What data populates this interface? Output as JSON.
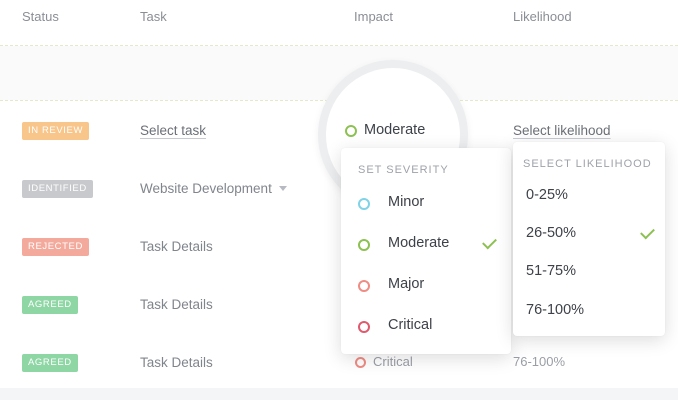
{
  "columns": {
    "status": "Status",
    "task": "Task",
    "impact": "Impact",
    "likelihood": "Likelihood"
  },
  "rows": [
    {
      "status": "IN REVIEW",
      "status_color": "#f8c58a",
      "task": "Select task",
      "impact": "Moderate",
      "likelihood": "Select likelihood"
    },
    {
      "status": "IDENTIFIED",
      "status_color": "#c7c9cc",
      "task": "Website Development"
    },
    {
      "status": "REJECTED",
      "status_color": "#f3aa9c",
      "task": "Task Details"
    },
    {
      "status": "AGREED",
      "status_color": "#8fd6a5",
      "task": "Task Details"
    },
    {
      "status": "AGREED",
      "status_color": "#8fd6a5",
      "task": "Task Details",
      "impact": "Critical",
      "likelihood": "76-100%"
    }
  ],
  "severity_dropdown": {
    "title": "SET SEVERITY",
    "selected": "Moderate",
    "options": [
      {
        "label": "Minor",
        "color": "#7fd3e8"
      },
      {
        "label": "Moderate",
        "color": "#8cc152"
      },
      {
        "label": "Major",
        "color": "#f08c84"
      },
      {
        "label": "Critical",
        "color": "#e05a6e"
      }
    ]
  },
  "likelihood_dropdown": {
    "title": "SELECT LIKELIHOOD",
    "selected": "26-50%",
    "options": [
      "0-25%",
      "26-50%",
      "51-75%",
      "76-100%"
    ]
  },
  "colors": {
    "check": "#8cc152",
    "moderate_ring": "#8cc152",
    "critical_ring": "#f08c84"
  }
}
